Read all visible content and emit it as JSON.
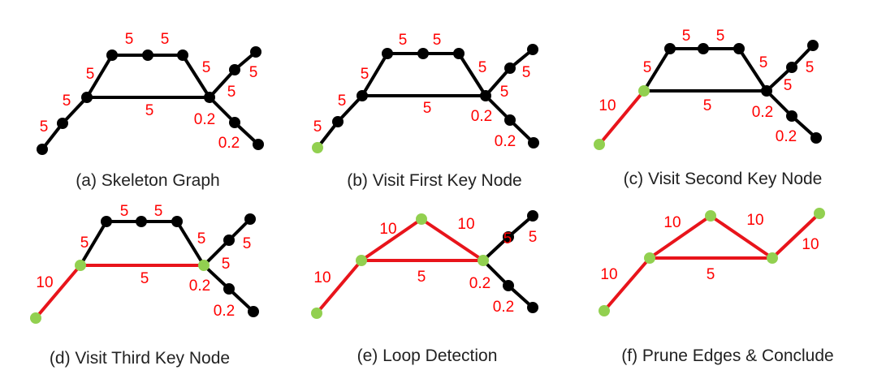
{
  "colors": {
    "edge_default": "#000000",
    "edge_highlight": "#e8141b",
    "node_default": "#000000",
    "node_key": "#92d050",
    "weight_label": "#ff0000",
    "caption": "#222222"
  },
  "panels": [
    {
      "caption": "(a) Skeleton Graph",
      "nodes": [
        {
          "id": "a",
          "key": false
        },
        {
          "id": "b",
          "key": false
        },
        {
          "id": "c",
          "key": false
        },
        {
          "id": "d",
          "key": false
        },
        {
          "id": "e",
          "key": false
        },
        {
          "id": "f",
          "key": false
        },
        {
          "id": "g",
          "key": false
        },
        {
          "id": "h",
          "key": false
        },
        {
          "id": "i",
          "key": false
        },
        {
          "id": "j",
          "key": false
        },
        {
          "id": "k",
          "key": false
        }
      ],
      "edges": [
        {
          "from": "a",
          "to": "b",
          "highlight": false
        },
        {
          "from": "b",
          "to": "c",
          "highlight": false
        },
        {
          "from": "c",
          "to": "d",
          "highlight": false
        },
        {
          "from": "d",
          "to": "e",
          "highlight": false
        },
        {
          "from": "e",
          "to": "f",
          "highlight": false
        },
        {
          "from": "f",
          "to": "g",
          "highlight": false
        },
        {
          "from": "c",
          "to": "g",
          "highlight": false
        },
        {
          "from": "g",
          "to": "h",
          "highlight": false
        },
        {
          "from": "h",
          "to": "i",
          "highlight": false
        },
        {
          "from": "g",
          "to": "j",
          "highlight": false
        },
        {
          "from": "j",
          "to": "k",
          "highlight": false
        }
      ],
      "labels": [
        "5",
        "5",
        "5",
        "5",
        "5",
        "5",
        "5",
        "5",
        "5",
        "0.2",
        "0.2"
      ]
    },
    {
      "caption": "(b) Visit First Key Node",
      "nodes": [
        {
          "id": "a",
          "key": true
        },
        {
          "id": "b",
          "key": false
        },
        {
          "id": "c",
          "key": false
        },
        {
          "id": "d",
          "key": false
        },
        {
          "id": "e",
          "key": false
        },
        {
          "id": "f",
          "key": false
        },
        {
          "id": "g",
          "key": false
        },
        {
          "id": "h",
          "key": false
        },
        {
          "id": "i",
          "key": false
        },
        {
          "id": "j",
          "key": false
        },
        {
          "id": "k",
          "key": false
        }
      ],
      "edges": [
        {
          "from": "a",
          "to": "b",
          "highlight": false
        },
        {
          "from": "b",
          "to": "c",
          "highlight": false
        },
        {
          "from": "c",
          "to": "d",
          "highlight": false
        },
        {
          "from": "d",
          "to": "e",
          "highlight": false
        },
        {
          "from": "e",
          "to": "f",
          "highlight": false
        },
        {
          "from": "f",
          "to": "g",
          "highlight": false
        },
        {
          "from": "c",
          "to": "g",
          "highlight": false
        },
        {
          "from": "g",
          "to": "h",
          "highlight": false
        },
        {
          "from": "h",
          "to": "i",
          "highlight": false
        },
        {
          "from": "g",
          "to": "j",
          "highlight": false
        },
        {
          "from": "j",
          "to": "k",
          "highlight": false
        }
      ],
      "labels": [
        "5",
        "5",
        "5",
        "5",
        "5",
        "5",
        "5",
        "5",
        "5",
        "0.2",
        "0.2"
      ]
    },
    {
      "caption": "(c) Visit Second Key Node",
      "nodes": [
        {
          "id": "a",
          "key": true
        },
        {
          "id": "c",
          "key": true
        },
        {
          "id": "d",
          "key": false
        },
        {
          "id": "e",
          "key": false
        },
        {
          "id": "f",
          "key": false
        },
        {
          "id": "g",
          "key": false
        },
        {
          "id": "h",
          "key": false
        },
        {
          "id": "i",
          "key": false
        },
        {
          "id": "j",
          "key": false
        },
        {
          "id": "k",
          "key": false
        }
      ],
      "edges": [
        {
          "from": "a",
          "to": "c",
          "highlight": true
        },
        {
          "from": "c",
          "to": "d",
          "highlight": false
        },
        {
          "from": "d",
          "to": "e",
          "highlight": false
        },
        {
          "from": "e",
          "to": "f",
          "highlight": false
        },
        {
          "from": "f",
          "to": "g",
          "highlight": false
        },
        {
          "from": "c",
          "to": "g",
          "highlight": false
        },
        {
          "from": "g",
          "to": "h",
          "highlight": false
        },
        {
          "from": "h",
          "to": "i",
          "highlight": false
        },
        {
          "from": "g",
          "to": "j",
          "highlight": false
        },
        {
          "from": "j",
          "to": "k",
          "highlight": false
        }
      ],
      "labels": [
        "10",
        "5",
        "5",
        "5",
        "5",
        "5",
        "5",
        "5",
        "0.2",
        "0.2"
      ]
    },
    {
      "caption": "(d) Visit Third Key Node",
      "nodes": [
        {
          "id": "a",
          "key": true
        },
        {
          "id": "c",
          "key": true
        },
        {
          "id": "d",
          "key": false
        },
        {
          "id": "e",
          "key": false
        },
        {
          "id": "f",
          "key": false
        },
        {
          "id": "g",
          "key": true
        },
        {
          "id": "h",
          "key": false
        },
        {
          "id": "i",
          "key": false
        },
        {
          "id": "j",
          "key": false
        },
        {
          "id": "k",
          "key": false
        }
      ],
      "edges": [
        {
          "from": "a",
          "to": "c",
          "highlight": true
        },
        {
          "from": "c",
          "to": "d",
          "highlight": false
        },
        {
          "from": "d",
          "to": "e",
          "highlight": false
        },
        {
          "from": "e",
          "to": "f",
          "highlight": false
        },
        {
          "from": "f",
          "to": "g",
          "highlight": false
        },
        {
          "from": "c",
          "to": "g",
          "highlight": true
        },
        {
          "from": "g",
          "to": "h",
          "highlight": false
        },
        {
          "from": "h",
          "to": "i",
          "highlight": false
        },
        {
          "from": "g",
          "to": "j",
          "highlight": false
        },
        {
          "from": "j",
          "to": "k",
          "highlight": false
        }
      ],
      "labels": [
        "10",
        "5",
        "5",
        "5",
        "5",
        "5",
        "5",
        "5",
        "0.2",
        "0.2"
      ]
    },
    {
      "caption": "(e) Loop Detection",
      "nodes": [
        {
          "id": "a",
          "key": true
        },
        {
          "id": "c",
          "key": true
        },
        {
          "id": "t",
          "key": true
        },
        {
          "id": "g",
          "key": true
        },
        {
          "id": "h",
          "key": false
        },
        {
          "id": "i",
          "key": false
        },
        {
          "id": "j",
          "key": false
        },
        {
          "id": "k",
          "key": false
        }
      ],
      "edges": [
        {
          "from": "a",
          "to": "c",
          "highlight": true
        },
        {
          "from": "c",
          "to": "t",
          "highlight": true
        },
        {
          "from": "t",
          "to": "g",
          "highlight": true
        },
        {
          "from": "c",
          "to": "g",
          "highlight": true
        },
        {
          "from": "g",
          "to": "h",
          "highlight": false
        },
        {
          "from": "h",
          "to": "i",
          "highlight": false
        },
        {
          "from": "g",
          "to": "j",
          "highlight": false
        },
        {
          "from": "j",
          "to": "k",
          "highlight": false
        }
      ],
      "labels": [
        "10",
        "10",
        "10",
        "5",
        "5",
        "5",
        "0.2",
        "0.2"
      ]
    },
    {
      "caption": "(f) Prune Edges & Conclude",
      "nodes": [
        {
          "id": "a",
          "key": true
        },
        {
          "id": "c",
          "key": true
        },
        {
          "id": "t",
          "key": true
        },
        {
          "id": "g",
          "key": true
        },
        {
          "id": "i",
          "key": true
        }
      ],
      "edges": [
        {
          "from": "a",
          "to": "c",
          "highlight": true
        },
        {
          "from": "c",
          "to": "t",
          "highlight": true
        },
        {
          "from": "t",
          "to": "g",
          "highlight": true
        },
        {
          "from": "c",
          "to": "g",
          "highlight": true
        },
        {
          "from": "g",
          "to": "i",
          "highlight": true
        }
      ],
      "labels": [
        "10",
        "10",
        "10",
        "5",
        "10"
      ]
    }
  ]
}
